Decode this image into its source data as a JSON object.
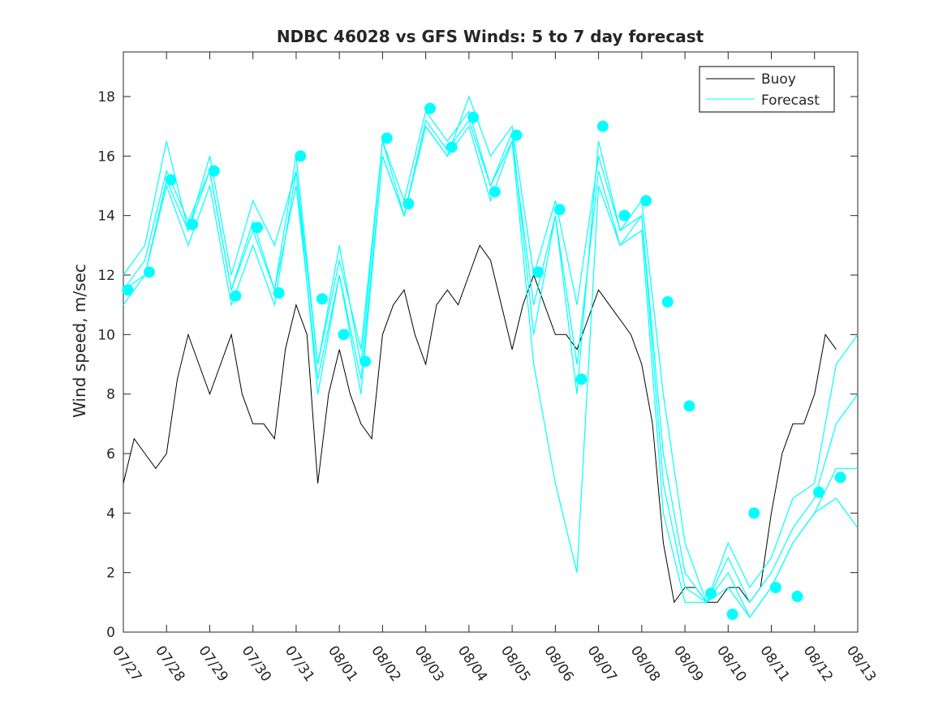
{
  "chart_data": {
    "type": "line",
    "title": "NDBC 46028 vs GFS Winds: 5 to 7 day forecast",
    "xlabel": "",
    "ylabel": "Wind speed, m/sec",
    "xlim": [
      0,
      17
    ],
    "ylim": [
      0,
      19.5
    ],
    "x_ticks": [
      0,
      1,
      2,
      3,
      4,
      5,
      6,
      7,
      8,
      9,
      10,
      11,
      12,
      13,
      14,
      15,
      16,
      17
    ],
    "x_tick_labels": [
      "07/27",
      "07/28",
      "07/29",
      "07/30",
      "07/31",
      "08/01",
      "08/02",
      "08/03",
      "08/04",
      "08/05",
      "08/06",
      "08/07",
      "08/08",
      "08/09",
      "08/10",
      "08/11",
      "08/12",
      "08/13"
    ],
    "y_ticks": [
      0,
      2,
      4,
      6,
      8,
      10,
      12,
      14,
      16,
      18
    ],
    "y_tick_labels": [
      "0",
      "2",
      "4",
      "6",
      "8",
      "10",
      "12",
      "14",
      "16",
      "18"
    ],
    "x_units": "days since 07/27 00:00",
    "grid": false,
    "legend": {
      "placement": "top-right",
      "entries": [
        {
          "label": "Buoy",
          "color": "#000000"
        },
        {
          "label": "Forecast",
          "color": "#00ffff"
        }
      ]
    },
    "series": [
      {
        "name": "Buoy",
        "color": "#000000",
        "x": [
          0,
          0.25,
          0.5,
          0.75,
          1.0,
          1.25,
          1.5,
          1.75,
          2.0,
          2.25,
          2.5,
          2.75,
          3.0,
          3.25,
          3.5,
          3.75,
          4.0,
          4.25,
          4.5,
          4.75,
          5.0,
          5.25,
          5.5,
          5.75,
          6.0,
          6.25,
          6.5,
          6.75,
          7.0,
          7.25,
          7.5,
          7.75,
          8.0,
          8.25,
          8.5,
          8.75,
          9.0,
          9.25,
          9.5,
          9.75,
          10.0,
          10.25,
          10.5,
          10.75,
          11.0,
          11.25,
          11.5,
          11.75,
          12.0,
          12.25,
          12.5,
          12.75,
          13.0,
          13.25,
          13.5,
          13.75,
          14.0,
          14.25,
          14.5,
          14.75,
          15.0,
          15.25,
          15.5,
          15.75,
          16.0,
          16.25,
          16.5
        ],
        "y": [
          5,
          6.5,
          6,
          5.5,
          6,
          8.5,
          10,
          9,
          8,
          9,
          10,
          8,
          7,
          7,
          6.5,
          9.5,
          11,
          10,
          5,
          8,
          9.5,
          8,
          7,
          6.5,
          10,
          11,
          11.5,
          10,
          9,
          11,
          11.5,
          11,
          12,
          13,
          12.5,
          11,
          9.5,
          11,
          12,
          11,
          10,
          10,
          9.5,
          10.5,
          11.5,
          11,
          10.5,
          10,
          9,
          7,
          3,
          1,
          1.5,
          1.5,
          1,
          1,
          1.5,
          1.5,
          1,
          1.5,
          4,
          6,
          7,
          7,
          8,
          10,
          9.5
        ]
      },
      {
        "name": "Forecast",
        "color": "#00ffff",
        "x": [
          0,
          0.5,
          1.0,
          1.5,
          2.0,
          2.5,
          3.0,
          3.5,
          4.0,
          4.5,
          5.0,
          5.5,
          6.0,
          6.5,
          7.0,
          7.5,
          8.0,
          8.5,
          9.0,
          9.5,
          10.0,
          10.5,
          11.0,
          11.5,
          12.0,
          12.5,
          13.0,
          13.5,
          14.0,
          14.5,
          15.0,
          15.5,
          16.0,
          16.5,
          17.0
        ],
        "y": [
          12,
          13,
          16.5,
          13.5,
          16,
          12,
          14.5,
          13,
          15.5,
          9,
          13,
          9,
          16.5,
          14,
          17,
          16,
          18,
          16,
          17,
          12,
          14.5,
          11,
          16,
          13.5,
          14.5,
          8,
          3,
          1,
          3,
          1.5,
          2.5,
          4.5,
          5,
          9,
          10
        ]
      },
      {
        "name": "Forecast",
        "color": "#00ffff",
        "x": [
          0,
          0.5,
          1.0,
          1.5,
          2.0,
          2.5,
          3.0,
          3.5,
          4.0,
          4.5,
          5.0,
          5.5,
          6.0,
          6.5,
          7.0,
          7.5,
          8.0,
          8.5,
          9.0,
          9.5,
          10.0,
          10.5,
          11.0,
          11.5,
          12.0,
          12.5,
          13.0,
          13.5,
          14.0,
          14.5,
          15.0,
          15.5,
          16.0,
          16.5,
          17.0
        ],
        "y": [
          11.5,
          12.5,
          15.5,
          13.8,
          15.5,
          11.5,
          13.8,
          11.5,
          15,
          8.5,
          12,
          8.5,
          16,
          14,
          17.2,
          16.2,
          17.2,
          15,
          16.5,
          11,
          14,
          9,
          15.5,
          13,
          14,
          6,
          2,
          1,
          2.5,
          1,
          2,
          3.5,
          4.5,
          7,
          8
        ]
      },
      {
        "name": "Forecast",
        "color": "#00ffff",
        "x": [
          0,
          0.5,
          1.0,
          1.5,
          2.0,
          2.5,
          3.0,
          3.5,
          4.0,
          4.5,
          5.0,
          5.5,
          6.0,
          6.5,
          7.0,
          7.5,
          8.0,
          8.5,
          9.0,
          9.5,
          10.0,
          10.5,
          11.0,
          11.5,
          12.0,
          12.5,
          13.0,
          13.5,
          14.0,
          14.5,
          15.0,
          15.5,
          16.0,
          16.5,
          17.0
        ],
        "y": [
          11.5,
          12,
          15.2,
          13.5,
          15.5,
          11.5,
          13.5,
          11.5,
          16,
          9,
          12.5,
          9.5,
          16.5,
          14.5,
          17.5,
          16.5,
          17.5,
          15,
          16.8,
          10,
          14,
          8,
          16.5,
          13.5,
          14,
          5,
          1.5,
          1,
          2,
          0.5,
          1.5,
          3,
          4,
          5.5,
          5.5
        ]
      },
      {
        "name": "Forecast",
        "color": "#00ffff",
        "x": [
          0,
          0.5,
          1.0,
          1.5,
          2.0,
          2.5,
          3.0,
          3.5,
          4.0,
          4.5,
          5.0,
          5.5,
          6.0,
          6.5,
          7.0,
          7.5,
          8.0,
          8.5,
          9.0,
          9.5,
          10.0,
          10.5,
          11.0,
          11.5,
          12.0,
          12.5,
          13.0,
          13.5,
          14.0,
          14.5,
          15.0,
          15.5,
          16.0,
          16.5,
          17.0
        ],
        "y": [
          11,
          12,
          15,
          13,
          15,
          11,
          13,
          11,
          15.5,
          8,
          12,
          8,
          16,
          14,
          17,
          16,
          17,
          14.5,
          16.5,
          9,
          5,
          2,
          15,
          13,
          13.5,
          4,
          1,
          1,
          1.5,
          0.5,
          1.5,
          3,
          4,
          4.5,
          3.5
        ]
      }
    ],
    "markers": {
      "name": "Forecast",
      "color": "#00ffff",
      "x": [
        0.1,
        0.6,
        1.1,
        1.6,
        2.1,
        2.6,
        3.1,
        3.6,
        4.1,
        4.6,
        5.1,
        5.6,
        6.1,
        6.6,
        7.1,
        7.6,
        8.1,
        8.6,
        9.1,
        9.6,
        10.1,
        10.6,
        11.1,
        11.6,
        12.1,
        12.6,
        13.1,
        13.6,
        14.1,
        14.6,
        15.1,
        15.6,
        16.1,
        16.6
      ],
      "y": [
        11.5,
        12.1,
        15.2,
        13.7,
        15.5,
        11.3,
        13.6,
        11.4,
        16.0,
        11.2,
        10.0,
        9.1,
        16.6,
        14.4,
        17.6,
        16.3,
        17.3,
        14.8,
        16.7,
        12.1,
        14.2,
        8.5,
        17.0,
        14.0,
        14.5,
        11.1,
        7.6,
        1.3,
        0.6,
        4.0,
        1.5,
        1.2,
        4.7,
        5.2
      ]
    }
  }
}
